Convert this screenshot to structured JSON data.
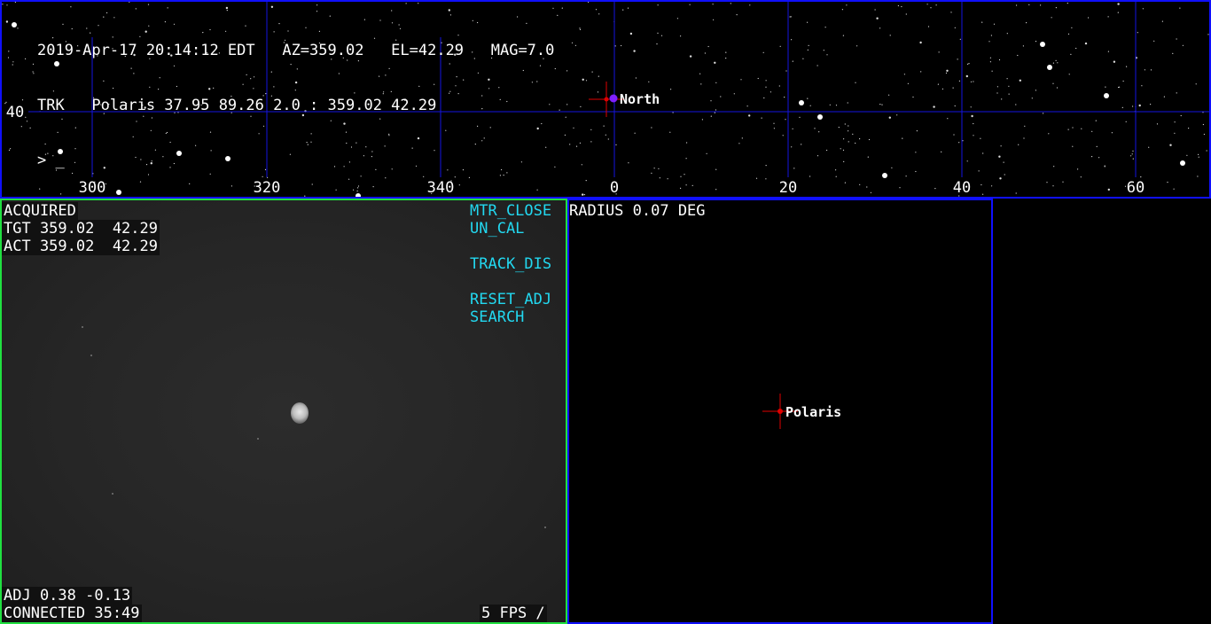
{
  "status": {
    "line1": "2019-Apr-17 20:14:12 EDT   AZ=359.02   EL=42.29   MAG=7.0",
    "line2": "TRK   Polaris 37.95 89.26 2.0 : 359.02 42.29",
    "prompt": "> _"
  },
  "sky_axis": {
    "az_labels": [
      "300",
      "320",
      "340",
      "0",
      "20",
      "40",
      "60"
    ],
    "el_labels": [
      "40"
    ],
    "north_label": "North"
  },
  "camera": {
    "state": "ACQUIRED",
    "tgt": "TGT 359.02  42.29",
    "act": "ACT 359.02  42.29",
    "adj": "ADJ 0.38 -0.13",
    "connected": "CONNECTED 35:49",
    "fps": "5 FPS /",
    "buttons": {
      "mtr_close": "MTR_CLOSE",
      "un_cal": "UN_CAL",
      "track_dis": "TRACK_DIS",
      "reset_adj": "RESET_ADJ",
      "search": "SEARCH"
    }
  },
  "zoom": {
    "radius": "RADIUS 0.07 DEG",
    "target_label": "Polaris"
  },
  "colors": {
    "panel_border": "#1010ff",
    "camera_border": "#20e040",
    "button_text": "#22d8f0",
    "crosshair": "#e00000",
    "north_marker": "#8020ff"
  }
}
